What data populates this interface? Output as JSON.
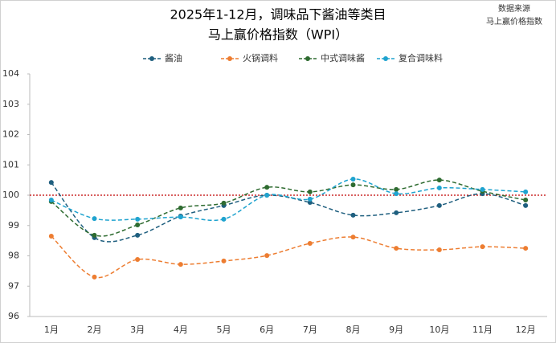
{
  "chart_data": {
    "type": "line",
    "title": "2025年1-12月，调味品下酱油等类目",
    "subtitle": "马上赢价格指数（WPI）",
    "source": [
      "数据来源",
      "马上赢价格指数"
    ],
    "categories": [
      "1月",
      "2月",
      "3月",
      "4月",
      "5月",
      "6月",
      "7月",
      "8月",
      "9月",
      "10月",
      "11月",
      "12月"
    ],
    "series": [
      {
        "name": "酱油",
        "color": "#1f5f7f",
        "values": [
          100.42,
          98.6,
          98.68,
          99.31,
          99.66,
          100.0,
          99.76,
          99.34,
          99.42,
          99.66,
          100.05,
          99.66
        ]
      },
      {
        "name": "火锅调料",
        "color": "#ed7d31",
        "values": [
          98.65,
          97.3,
          97.88,
          97.72,
          97.83,
          98.01,
          98.41,
          98.62,
          98.25,
          98.2,
          98.3,
          98.25
        ]
      },
      {
        "name": "中式调味酱",
        "color": "#2e6b30",
        "values": [
          99.79,
          98.68,
          99.02,
          99.58,
          99.74,
          100.26,
          100.11,
          100.34,
          100.19,
          100.5,
          100.13,
          99.84
        ]
      },
      {
        "name": "复合调味料",
        "color": "#1fa3cf",
        "values": [
          99.84,
          99.23,
          99.21,
          99.28,
          99.21,
          100.0,
          99.87,
          100.53,
          100.05,
          100.24,
          100.19,
          100.11
        ]
      }
    ],
    "reference_line": {
      "value": 100,
      "color": "#c00000"
    },
    "ylim": [
      96,
      104
    ],
    "yticks": [
      96,
      97,
      98,
      99,
      100,
      101,
      102,
      103,
      104
    ],
    "legend": "top",
    "grid": false
  }
}
